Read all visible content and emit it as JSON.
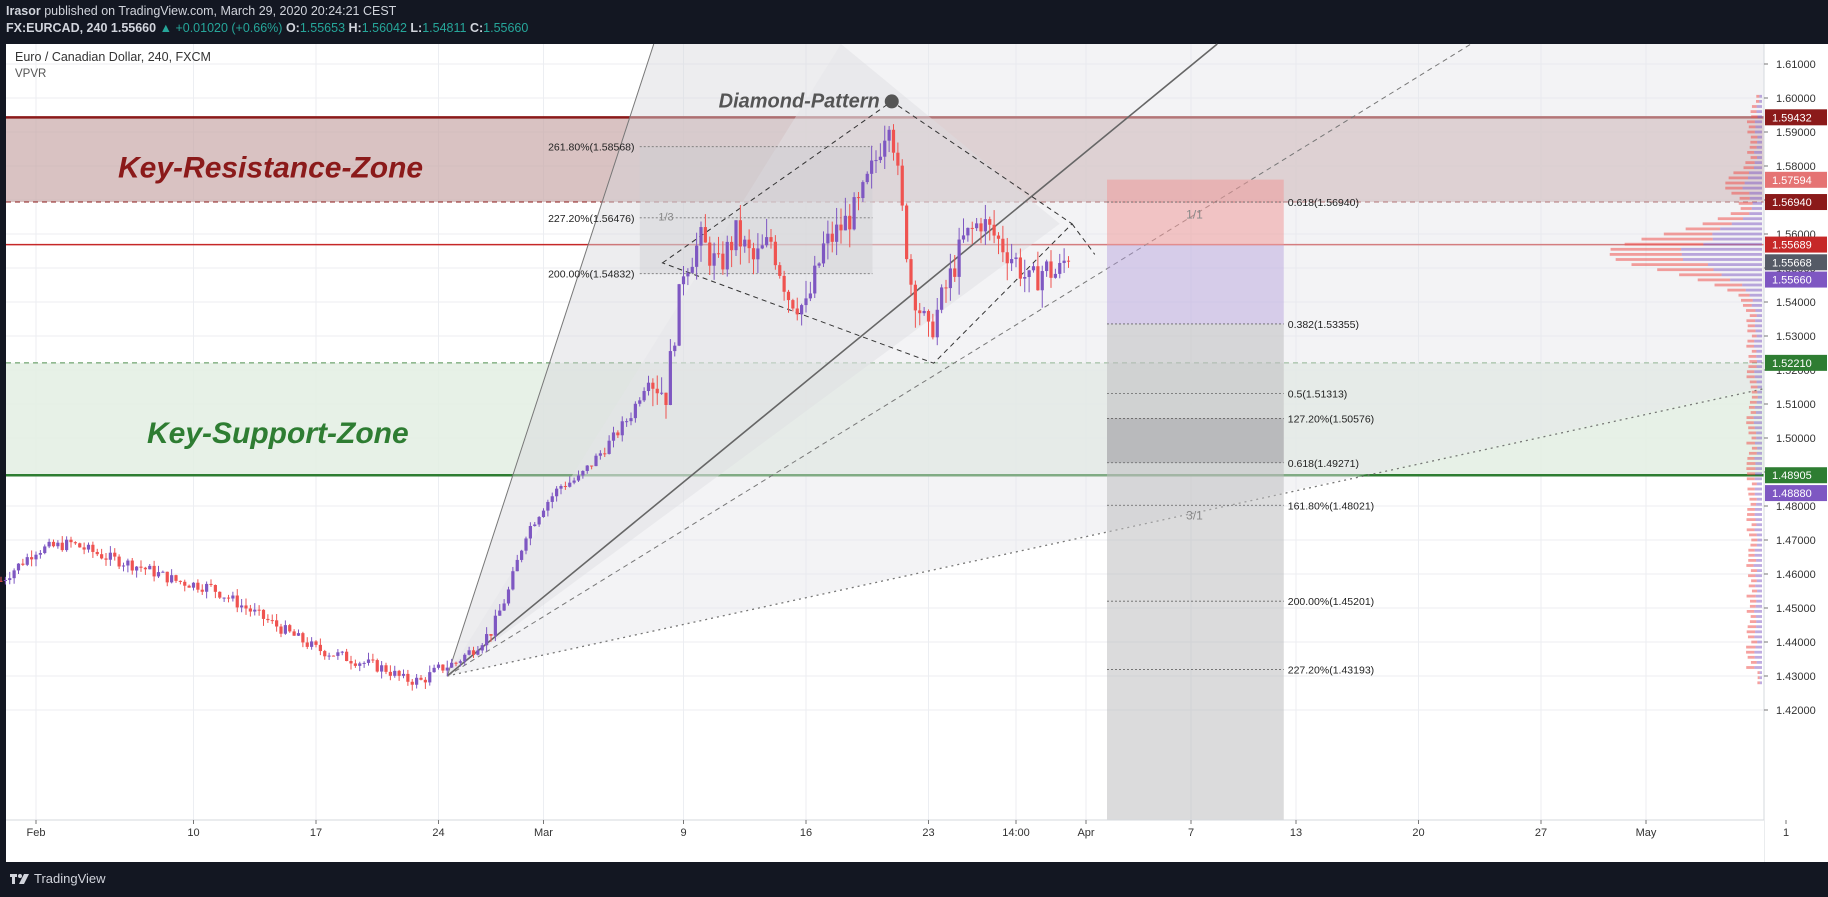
{
  "header": {
    "author": "Irasor",
    "published_text": "published on TradingView.com, March 29, 2020 20:24:21 CEST",
    "symbol": "FX:EURCAD, 240",
    "last": "1.55660",
    "change": "+0.01020 (+0.66%)",
    "o_label": "O:",
    "o": "1.55653",
    "h_label": "H:",
    "h": "1.56042",
    "l_label": "L:",
    "l": "1.54811",
    "c_label": "C:",
    "c": "1.55660"
  },
  "footer": {
    "brand": "TradingView"
  },
  "colors": {
    "up": "#7e57c2",
    "down": "#ef5350",
    "resistance": "#8b1a1a",
    "support": "#2e7d32",
    "resistance_zone": "#c9a8a8",
    "support_zone": "#e3efe3"
  },
  "chart_data": {
    "type": "candlestick",
    "title": "Euro / Canadian Dollar, 240, FXCM",
    "indicator": "VPVR",
    "ylim": [
      1.415,
      1.618
    ],
    "y_ticks": [
      "1.42000",
      "1.43000",
      "1.44000",
      "1.45000",
      "1.46000",
      "1.47000",
      "1.48000",
      "1.49000",
      "1.50000",
      "1.51000",
      "1.52000",
      "1.53000",
      "1.54000",
      "1.55000",
      "1.56000",
      "1.57000",
      "1.58000",
      "1.59000",
      "1.60000",
      "1.61000"
    ],
    "x_ticks": [
      {
        "label": "Feb",
        "day": 0
      },
      {
        "label": "10",
        "day": 9
      },
      {
        "label": "17",
        "day": 16
      },
      {
        "label": "24",
        "day": 23
      },
      {
        "label": "Mar",
        "day": 29
      },
      {
        "label": "9",
        "day": 37
      },
      {
        "label": "16",
        "day": 44
      },
      {
        "label": "23",
        "day": 51
      },
      {
        "label": "14:00",
        "day": 56
      },
      {
        "label": "Apr",
        "day": 60
      },
      {
        "label": "7",
        "day": 66
      },
      {
        "label": "13",
        "day": 72
      },
      {
        "label": "20",
        "day": 79
      },
      {
        "label": "27",
        "day": 86
      },
      {
        "label": "May",
        "day": 92
      },
      {
        "label": "1",
        "day": 100
      }
    ],
    "price_path": [
      [
        -2,
        1.458
      ],
      [
        0,
        1.467
      ],
      [
        2,
        1.469
      ],
      [
        4,
        1.465
      ],
      [
        6,
        1.462
      ],
      [
        8,
        1.458
      ],
      [
        10,
        1.456
      ],
      [
        12,
        1.45
      ],
      [
        14,
        1.444
      ],
      [
        16,
        1.438
      ],
      [
        18,
        1.435
      ],
      [
        20,
        1.432
      ],
      [
        21,
        1.429
      ],
      [
        22,
        1.4285
      ],
      [
        23,
        1.432
      ],
      [
        24,
        1.434
      ],
      [
        25,
        1.438
      ],
      [
        26,
        1.443
      ],
      [
        27,
        1.455
      ],
      [
        28,
        1.472
      ],
      [
        29,
        1.48
      ],
      [
        30,
        1.486
      ],
      [
        31,
        1.488
      ],
      [
        32,
        1.494
      ],
      [
        33,
        1.5
      ],
      [
        34,
        1.507
      ],
      [
        35,
        1.518
      ],
      [
        36,
        1.513
      ],
      [
        37,
        1.55
      ],
      [
        38,
        1.558
      ],
      [
        39,
        1.55
      ],
      [
        40,
        1.56
      ],
      [
        41,
        1.552
      ],
      [
        42,
        1.558
      ],
      [
        43,
        1.542
      ],
      [
        44,
        1.538
      ],
      [
        45,
        1.556
      ],
      [
        46,
        1.562
      ],
      [
        47,
        1.568
      ],
      [
        48,
        1.582
      ],
      [
        48.8,
        1.596
      ],
      [
        49.4,
        1.57
      ],
      [
        50,
        1.546
      ],
      [
        51,
        1.53
      ],
      [
        52,
        1.544
      ],
      [
        53,
        1.558
      ],
      [
        54,
        1.564
      ],
      [
        55,
        1.558
      ],
      [
        56,
        1.552
      ],
      [
        56.8,
        1.545
      ],
      [
        57.6,
        1.55
      ],
      [
        58.4,
        1.548
      ],
      [
        59.2,
        1.5566
      ]
    ],
    "zones": [
      {
        "name": "Key-Resistance-Zone",
        "from": 1.5694,
        "to": 1.5943
      },
      {
        "name": "Key-Support-Zone",
        "from": 1.48905,
        "to": 1.5221
      }
    ],
    "levels": [
      {
        "value": 1.59432,
        "label": "1.59432",
        "bg": "#8b1a1a"
      },
      {
        "value": 1.57594,
        "label": "1.57594",
        "bg": "#e57373"
      },
      {
        "value": 1.5694,
        "label": "1.56940",
        "bg": "#8b1a1a"
      },
      {
        "value": 1.55689,
        "label": "1.55689",
        "bg": "#c62828"
      },
      {
        "value": 1.55668,
        "label": "1.55668",
        "bg": "#555a66"
      },
      {
        "value": 1.5566,
        "label": "1.55660",
        "bg": "#7e57c2"
      },
      {
        "value": 1.5221,
        "label": "1.52210",
        "bg": "#2e7d32"
      },
      {
        "value": 1.48905,
        "label": "1.48905",
        "bg": "#2e7d32"
      },
      {
        "value": 1.4888,
        "label": "1.48880",
        "bg": "#7e57c2"
      }
    ],
    "fib_left": [
      {
        "label": "261.80%(1.58568)",
        "value": 1.58568
      },
      {
        "label": "227.20%(1.56476)",
        "value": 1.56476
      },
      {
        "label": "200.00%(1.54832)",
        "value": 1.54832
      }
    ],
    "fib_right": [
      {
        "label": "0.618(1.56940)",
        "value": 1.5694
      },
      {
        "label": "0.382(1.53355)",
        "value": 1.53355
      },
      {
        "label": "0.5(1.51313)",
        "value": 1.51313
      },
      {
        "label": "127.20%(1.50576)",
        "value": 1.50576
      },
      {
        "label": "0.618(1.49271)",
        "value": 1.49271
      },
      {
        "label": "161.80%(1.48021)",
        "value": 1.48021
      },
      {
        "label": "200.00%(1.45201)",
        "value": 1.45201
      },
      {
        "label": "227.20%(1.43193)",
        "value": 1.43193
      }
    ],
    "annotations": {
      "diamond": "Diamond-Pattern",
      "ratio_top": "1/1",
      "ratio_bottom": "3/1",
      "ratio_left": "1/3"
    }
  }
}
